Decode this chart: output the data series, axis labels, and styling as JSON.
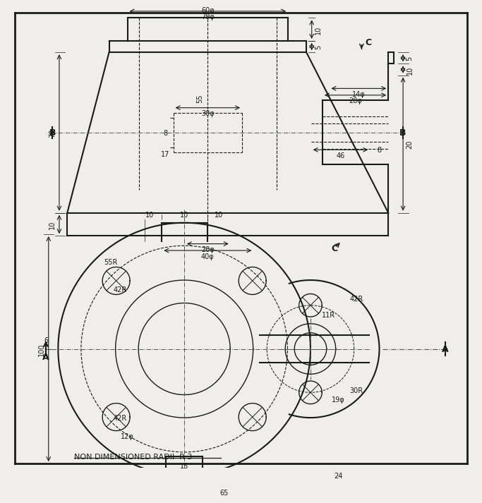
{
  "bg_color": "#f0eeea",
  "line_color": "#1a1a1a",
  "note": "NON DIMENSIONED RADII  R 3",
  "dim_top": {
    "phi70": "70φ",
    "phi60": "60φ",
    "phi30": "30φ",
    "phi20": "20φ",
    "phi40": "40φ",
    "phi28": "28φ",
    "phi14": "14φ",
    "d55": "55",
    "d8": "8",
    "d17": "17",
    "d70": "70",
    "d10": "10",
    "d5": "5",
    "d46": "46",
    "d8b": "8",
    "d5b": "5",
    "d10b": "10",
    "d20": "20",
    "B": "B",
    "C": "C"
  },
  "dim_bot": {
    "r55": "55R",
    "r42": "42R",
    "r12": "12φ",
    "r42b": "42R",
    "r11": "11R",
    "r30": "30R",
    "r19": "19φ",
    "d10a": "10",
    "d10b": "10",
    "d10c": "10",
    "d6": "6",
    "d24": "24",
    "d65": "65",
    "d15": "15",
    "d100": "100",
    "A": "A"
  }
}
